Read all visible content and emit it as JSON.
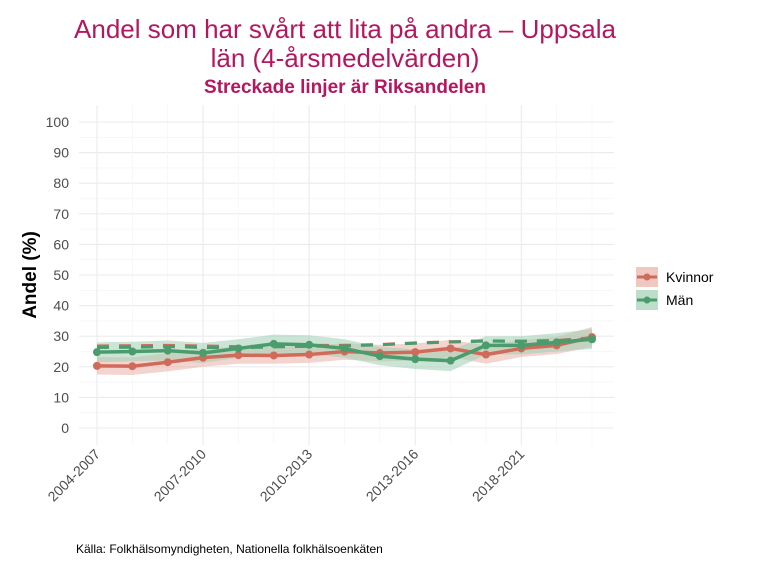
{
  "chart_data": {
    "type": "line",
    "title": "Andel som har svårt att lita på andra – Uppsala län (4-årsmedelvärden)",
    "title_lines": [
      "Andel som har svårt att lita på andra – Uppsala",
      "län (4-årsmedelvärden)"
    ],
    "subtitle": "Streckade linjer är Riksandelen",
    "ylabel": "Andel (%)",
    "xlabel": "",
    "ylim": [
      0,
      100
    ],
    "yticks": [
      0,
      10,
      20,
      30,
      40,
      50,
      60,
      70,
      80,
      90,
      100
    ],
    "xtick_labels": [
      {
        "label": "2004-2007",
        "index": 0
      },
      {
        "label": "2007-2010",
        "index": 3
      },
      {
        "label": "2010-2013",
        "index": 6
      },
      {
        "label": "2013-2016",
        "index": 9
      },
      {
        "label": "2018-2021",
        "index": 12
      }
    ],
    "n_points": 15,
    "legend_position": "right",
    "series": [
      {
        "name": "Kvinnor",
        "color": "#d06a5a",
        "band": "#eab0a8",
        "values": [
          20.3,
          20.2,
          21.5,
          23,
          23.8,
          23.7,
          24,
          25,
          24.5,
          24.8,
          26,
          24,
          26,
          27,
          29.7
        ],
        "lower": [
          17.5,
          17.3,
          18.5,
          20,
          21,
          21,
          21.3,
          22.3,
          21.8,
          22,
          23.2,
          21,
          23.2,
          24.2,
          26.5
        ],
        "upper": [
          23.2,
          23.1,
          24.5,
          26,
          26.6,
          26.5,
          26.8,
          27.7,
          27.2,
          27.6,
          28.8,
          27,
          28.8,
          29.8,
          33
        ],
        "riks": [
          26.8,
          26.9,
          27,
          26.8,
          26.6,
          26.8,
          27,
          27,
          27.3,
          27.8,
          28.2,
          28.5,
          28.4,
          28.6,
          29.5
        ]
      },
      {
        "name": "Män",
        "color": "#4a9c6d",
        "band": "#9fd0b4",
        "values": [
          24.8,
          25,
          25.3,
          24.5,
          26,
          27.5,
          27.2,
          26,
          23.5,
          22.5,
          22,
          27,
          27,
          28,
          29
        ],
        "lower": [
          21.5,
          21.8,
          22,
          21.3,
          23,
          24.5,
          24.2,
          23,
          20.5,
          19.3,
          18.6,
          24,
          24,
          25,
          25.8
        ],
        "upper": [
          28,
          28.2,
          28.6,
          27.8,
          29,
          30.5,
          30.3,
          29,
          26.5,
          25.7,
          25.4,
          30,
          30,
          31,
          32.3
        ],
        "riks": [
          26.3,
          26.4,
          26.6,
          26.3,
          26.2,
          26.5,
          26.7,
          26.8,
          27.2,
          27.7,
          28.1,
          28.4,
          28.3,
          28.5,
          29.2
        ]
      }
    ]
  },
  "source": "Källa: Folkhälsomyndigheten, Nationella folkhälsoenkäten"
}
